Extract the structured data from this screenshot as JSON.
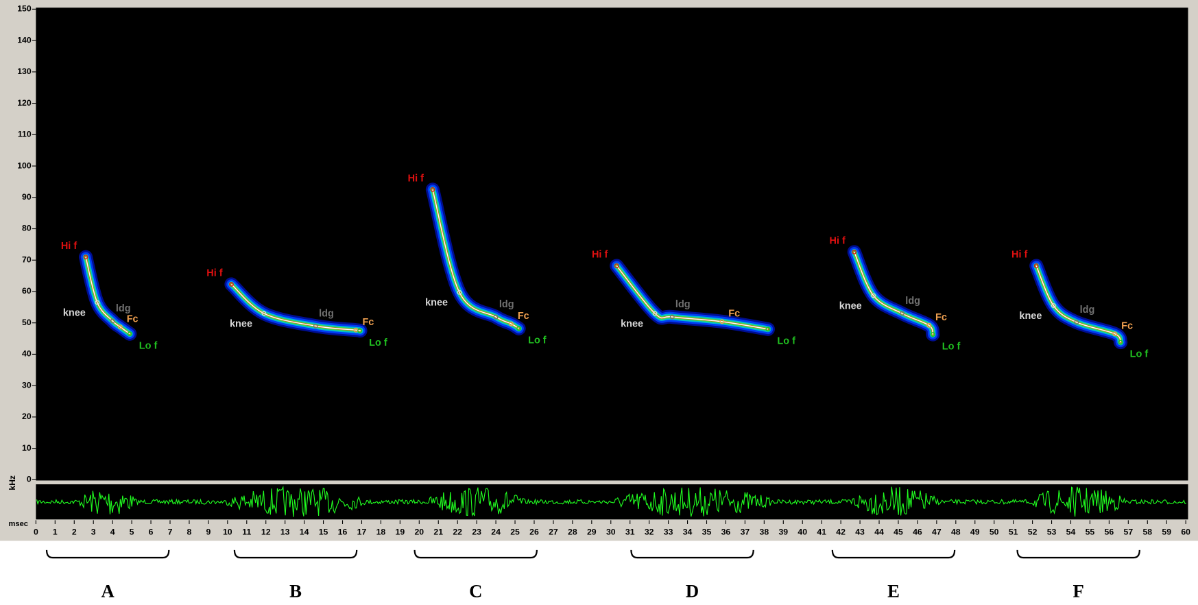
{
  "chart_data": {
    "type": "spectrogram",
    "ylabel": "kHz",
    "xlabel": "msec",
    "xlim": [
      0,
      60
    ],
    "ylim": [
      0,
      150
    ],
    "xticks": [
      0,
      1,
      2,
      3,
      4,
      5,
      6,
      7,
      8,
      9,
      10,
      11,
      12,
      13,
      14,
      15,
      16,
      17,
      18,
      19,
      20,
      21,
      22,
      23,
      24,
      25,
      26,
      27,
      28,
      29,
      30,
      31,
      32,
      33,
      34,
      35,
      36,
      37,
      38,
      39,
      40,
      41,
      42,
      43,
      44,
      45,
      46,
      47,
      48,
      49,
      50,
      51,
      52,
      53,
      54,
      55,
      56,
      57,
      58,
      59,
      60
    ],
    "yticks": [
      0,
      10,
      20,
      30,
      40,
      50,
      60,
      70,
      80,
      90,
      100,
      110,
      120,
      130,
      140,
      150
    ],
    "label_colors": [
      "#e01010",
      "#d8d8d8",
      "#707070",
      "#f0a050",
      "#20c020"
    ],
    "series": [
      {
        "name": "A",
        "x": [
          2.6,
          3.2,
          4.0,
          4.4,
          4.9
        ],
        "values": [
          71,
          56.5,
          50.6,
          48.7,
          46.5
        ],
        "point_labels": [
          "Hi f",
          "knee",
          "ldg",
          "Fc",
          "Lo f"
        ]
      },
      {
        "name": "B",
        "x": [
          10.2,
          11.9,
          14.6,
          16.7,
          16.9
        ],
        "values": [
          62.3,
          53,
          49,
          47.7,
          47.5
        ],
        "point_labels": [
          "Hi f",
          "knee",
          "ldg",
          "Fc",
          "Lo f"
        ]
      },
      {
        "name": "C",
        "x": [
          20.7,
          22.1,
          24.0,
          24.8,
          25.2
        ],
        "values": [
          92.5,
          59.7,
          51.9,
          49.7,
          48.2
        ],
        "point_labels": [
          "Hi f",
          "knee",
          "ldg",
          "Fc",
          "Lo f"
        ]
      },
      {
        "name": "D",
        "x": [
          30.3,
          32.3,
          33.2,
          35.8,
          38.2
        ],
        "values": [
          68.2,
          53,
          51.9,
          50.4,
          48
        ],
        "point_labels": [
          "Hi f",
          "knee",
          "ldg",
          "Fc",
          "Lo f"
        ]
      },
      {
        "name": "E",
        "x": [
          42.7,
          43.7,
          45.2,
          46.6,
          46.8
        ],
        "values": [
          72.6,
          58.7,
          53,
          49.2,
          46.3
        ],
        "point_labels": [
          "Hi f",
          "knee",
          "ldg",
          "Fc",
          "Lo f"
        ]
      },
      {
        "name": "F",
        "x": [
          52.2,
          53.1,
          54.3,
          56.3,
          56.6
        ],
        "values": [
          68.2,
          55.5,
          50.2,
          46.5,
          43.8
        ],
        "point_labels": [
          "Hi f",
          "knee",
          "ldg",
          "Fc",
          "Lo f"
        ]
      }
    ]
  }
}
